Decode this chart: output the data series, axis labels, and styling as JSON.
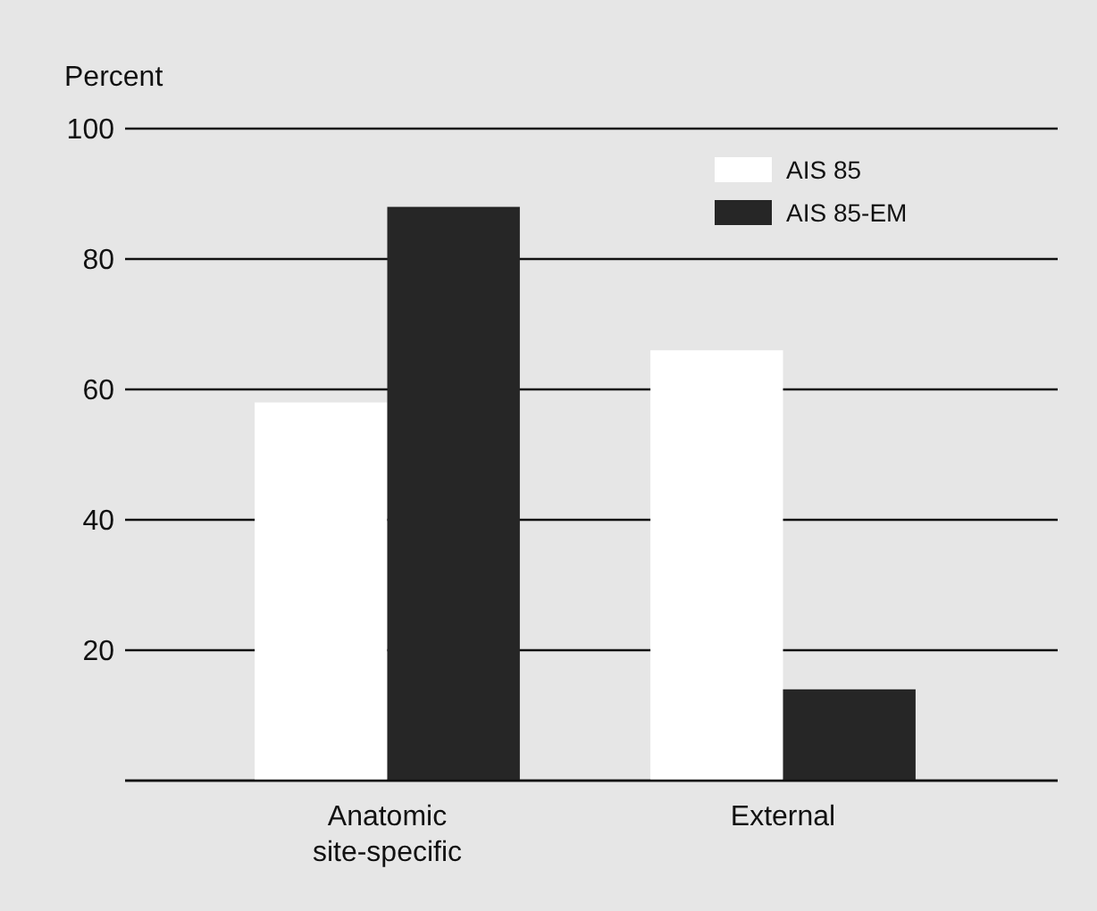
{
  "chart_data": {
    "type": "bar",
    "ylabel": "Percent",
    "categories": [
      "Anatomic\nsite-specific",
      "External"
    ],
    "series": [
      {
        "name": "AIS 85",
        "color": "#ffffff",
        "values": [
          58,
          66
        ]
      },
      {
        "name": "AIS 85-EM",
        "color": "#262626",
        "values": [
          88,
          14
        ]
      }
    ],
    "ylim": [
      0,
      100
    ],
    "yticks": [
      {
        "value": 0,
        "label": null
      },
      20,
      40,
      60,
      80,
      100
    ],
    "grid": "y",
    "legend": "top right"
  }
}
